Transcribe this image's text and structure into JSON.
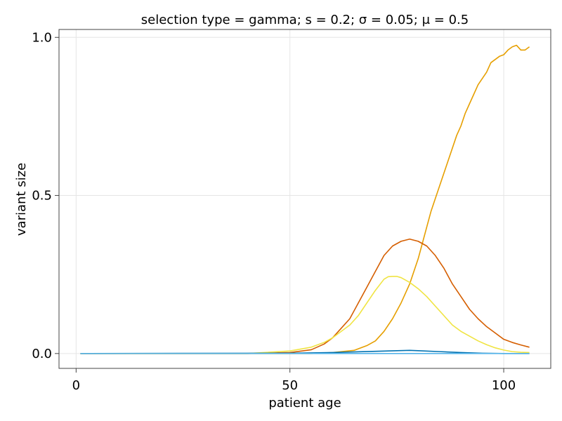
{
  "chart_data": {
    "type": "line",
    "title": "selection type = gamma; s = 0.2; σ = 0.05; μ = 0.5",
    "xlabel": "patient age",
    "ylabel": "variant size",
    "xlim": [
      -4,
      111
    ],
    "ylim": [
      -0.047,
      1.025
    ],
    "xticks": [
      0,
      50,
      100
    ],
    "xtick_labels": [
      "0",
      "50",
      "100"
    ],
    "yticks": [
      0,
      0.5,
      1
    ],
    "ytick_labels": [
      "0.0",
      "0.5",
      "1.0"
    ],
    "grid": true,
    "legend": "none",
    "series": [
      {
        "color": "#E69F00",
        "x": [
          1,
          40,
          55,
          60,
          65,
          68,
          70,
          72,
          74,
          76,
          78,
          80,
          81,
          82,
          83,
          84,
          85,
          86,
          87,
          88,
          89,
          90,
          91,
          92,
          93,
          94,
          95,
          96,
          97,
          98,
          99,
          100,
          101,
          102,
          103,
          104,
          105,
          106
        ],
        "y": [
          0,
          0,
          0,
          0.003,
          0.01,
          0.025,
          0.04,
          0.07,
          0.11,
          0.16,
          0.22,
          0.3,
          0.35,
          0.4,
          0.45,
          0.49,
          0.53,
          0.57,
          0.61,
          0.65,
          0.69,
          0.72,
          0.76,
          0.79,
          0.82,
          0.85,
          0.87,
          0.89,
          0.92,
          0.93,
          0.94,
          0.945,
          0.96,
          0.97,
          0.975,
          0.96,
          0.96,
          0.97
        ]
      },
      {
        "color": "#D55E00",
        "x": [
          1,
          40,
          50,
          55,
          58,
          60,
          62,
          64,
          66,
          68,
          70,
          72,
          74,
          76,
          78,
          80,
          82,
          84,
          86,
          88,
          90,
          92,
          94,
          96,
          98,
          100,
          102,
          104,
          106
        ],
        "y": [
          0,
          0,
          0.003,
          0.012,
          0.03,
          0.05,
          0.08,
          0.11,
          0.16,
          0.21,
          0.26,
          0.31,
          0.34,
          0.355,
          0.362,
          0.355,
          0.34,
          0.31,
          0.27,
          0.22,
          0.18,
          0.14,
          0.11,
          0.085,
          0.065,
          0.045,
          0.035,
          0.027,
          0.02
        ]
      },
      {
        "color": "#F0E442",
        "x": [
          1,
          40,
          50,
          55,
          58,
          60,
          62,
          64,
          66,
          68,
          70,
          72,
          73,
          74,
          75,
          76,
          78,
          80,
          82,
          84,
          86,
          88,
          90,
          92,
          94,
          96,
          98,
          100,
          102,
          104,
          106
        ],
        "y": [
          0,
          0,
          0.008,
          0.02,
          0.035,
          0.05,
          0.07,
          0.09,
          0.12,
          0.16,
          0.2,
          0.235,
          0.243,
          0.244,
          0.244,
          0.24,
          0.225,
          0.205,
          0.18,
          0.15,
          0.12,
          0.09,
          0.07,
          0.055,
          0.04,
          0.028,
          0.018,
          0.011,
          0.006,
          0.004,
          0.003
        ]
      },
      {
        "color": "#0072B2",
        "x": [
          1,
          50,
          60,
          65,
          70,
          75,
          78,
          80,
          85,
          90,
          95,
          100,
          106
        ],
        "y": [
          0,
          0.001,
          0.003,
          0.005,
          0.007,
          0.009,
          0.01,
          0.009,
          0.006,
          0.003,
          0.001,
          0,
          0
        ]
      },
      {
        "color": "#56B4E9",
        "x": [
          1,
          106
        ],
        "y": [
          0,
          0
        ]
      }
    ]
  }
}
